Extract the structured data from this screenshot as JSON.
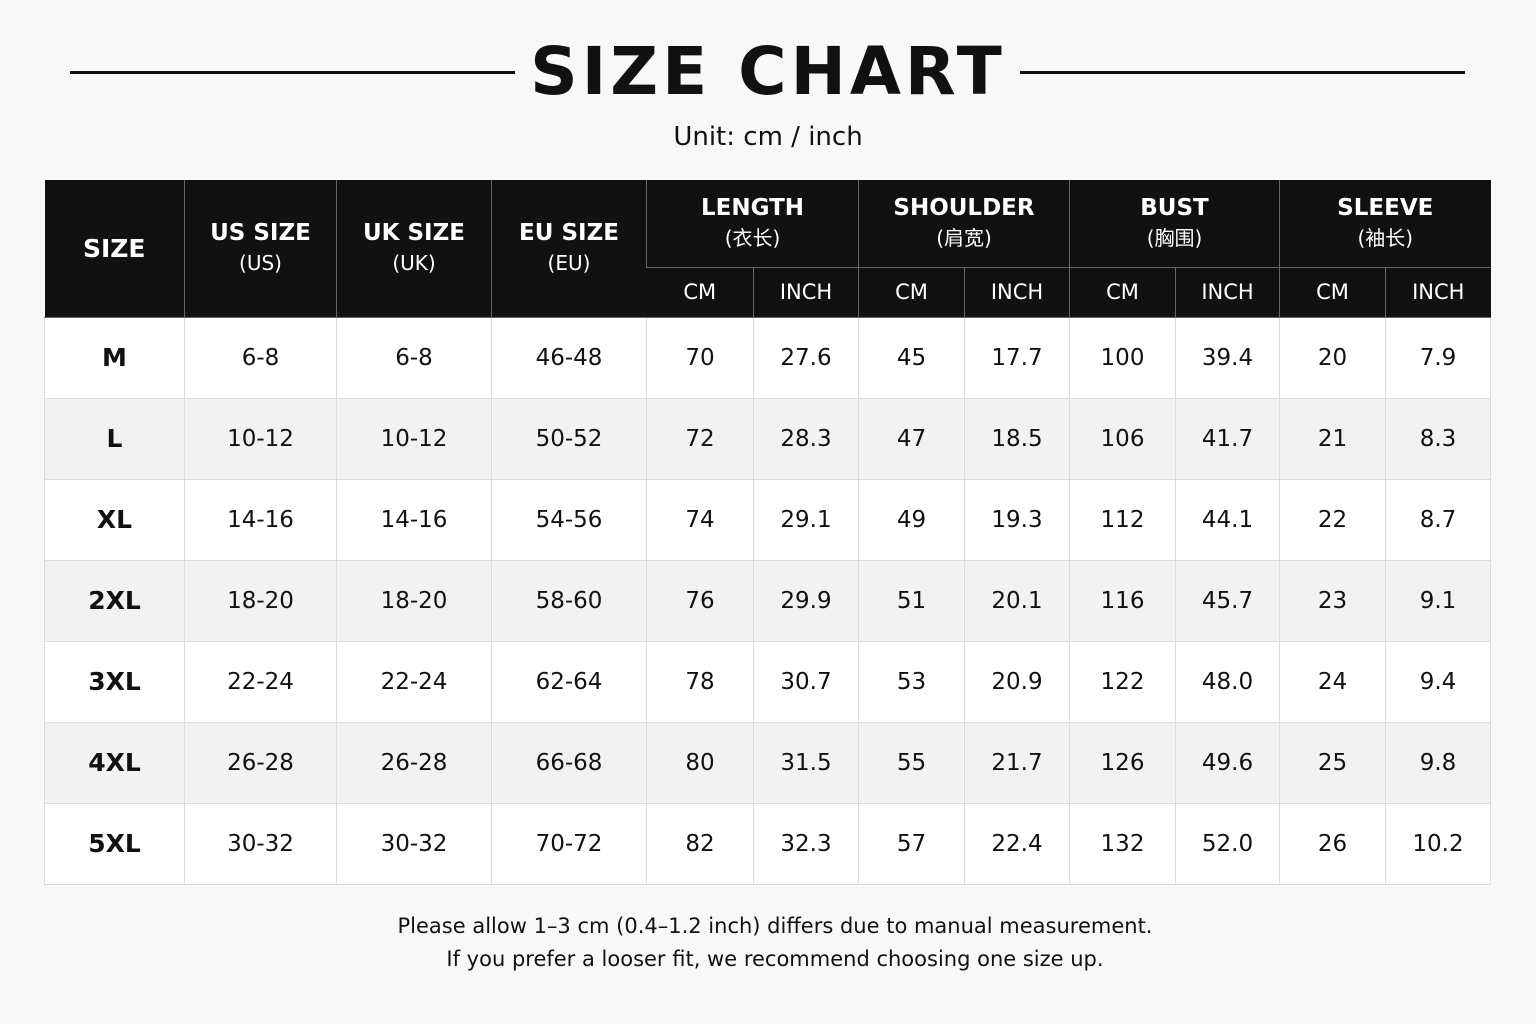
{
  "header": {
    "title": "SIZE CHART",
    "subtitle": "Unit: cm / inch"
  },
  "table": {
    "columns": [
      {
        "label": "SIZE"
      },
      {
        "label": "US SIZE",
        "sub": "(US)"
      },
      {
        "label": "UK SIZE",
        "sub": "(UK)"
      },
      {
        "label": "EU SIZE",
        "sub": "(EU)"
      }
    ],
    "groups": [
      {
        "label": "LENGTH",
        "sub": "(衣长)",
        "units": [
          "CM",
          "INCH"
        ]
      },
      {
        "label": "SHOULDER",
        "sub": "(肩宽)",
        "units": [
          "CM",
          "INCH"
        ]
      },
      {
        "label": "BUST",
        "sub": "(胸围)",
        "units": [
          "CM",
          "INCH"
        ]
      },
      {
        "label": "SLEEVE",
        "sub": "(袖长)",
        "units": [
          "CM",
          "INCH"
        ]
      }
    ],
    "rows": [
      [
        "M",
        "6-8",
        "6-8",
        "46-48",
        "70",
        "27.6",
        "45",
        "17.7",
        "100",
        "39.4",
        "20",
        "7.9"
      ],
      [
        "L",
        "10-12",
        "10-12",
        "50-52",
        "72",
        "28.3",
        "47",
        "18.5",
        "106",
        "41.7",
        "21",
        "8.3"
      ],
      [
        "XL",
        "14-16",
        "14-16",
        "54-56",
        "74",
        "29.1",
        "49",
        "19.3",
        "112",
        "44.1",
        "22",
        "8.7"
      ],
      [
        "2XL",
        "18-20",
        "18-20",
        "58-60",
        "76",
        "29.9",
        "51",
        "20.1",
        "116",
        "45.7",
        "23",
        "9.1"
      ],
      [
        "3XL",
        "22-24",
        "22-24",
        "62-64",
        "78",
        "30.7",
        "53",
        "20.9",
        "122",
        "48.0",
        "24",
        "9.4"
      ],
      [
        "4XL",
        "26-28",
        "26-28",
        "66-68",
        "80",
        "31.5",
        "55",
        "21.7",
        "126",
        "49.6",
        "25",
        "9.8"
      ],
      [
        "5XL",
        "30-32",
        "30-32",
        "70-72",
        "82",
        "32.3",
        "57",
        "22.4",
        "132",
        "52.0",
        "26",
        "10.2"
      ]
    ]
  },
  "notes": [
    "Please allow 1–3  cm (0.4–1.2 inch) differs due to manual measurement.",
    "If you prefer a looser fit, we recommend choosing one size up."
  ]
}
